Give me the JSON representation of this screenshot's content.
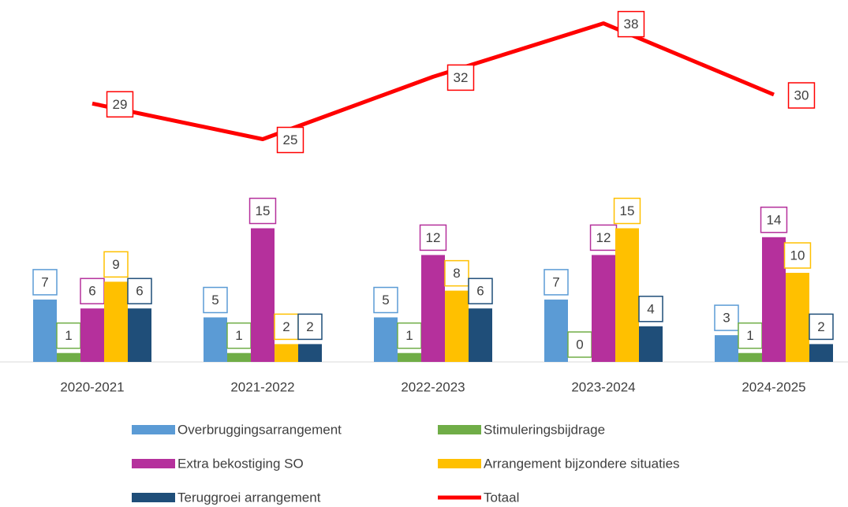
{
  "chart_data": {
    "type": "bar",
    "categories": [
      "2020-2021",
      "2021-2022",
      "2022-2023",
      "2023-2024",
      "2024-2025"
    ],
    "series": [
      {
        "name": "Overbruggingsarrangement",
        "color": "#5b9bd5",
        "values": [
          7,
          5,
          5,
          7,
          3
        ]
      },
      {
        "name": "Stimuleringsbijdrage",
        "color": "#70ad47",
        "values": [
          1,
          1,
          1,
          0,
          1
        ]
      },
      {
        "name": "Extra bekostiging SO",
        "color": "#b5309c",
        "values": [
          6,
          15,
          12,
          12,
          14
        ]
      },
      {
        "name": "Arrangement bijzondere situaties",
        "color": "#ffc000",
        "values": [
          9,
          2,
          8,
          15,
          10
        ]
      },
      {
        "name": "Teruggroei arrangement",
        "color": "#1f4e79",
        "values": [
          6,
          2,
          6,
          4,
          2
        ]
      },
      {
        "name": "Totaal",
        "color": "#ff0000",
        "type": "line",
        "values": [
          29,
          25,
          32,
          38,
          30
        ]
      }
    ],
    "ylim": [
      0,
      40
    ]
  }
}
